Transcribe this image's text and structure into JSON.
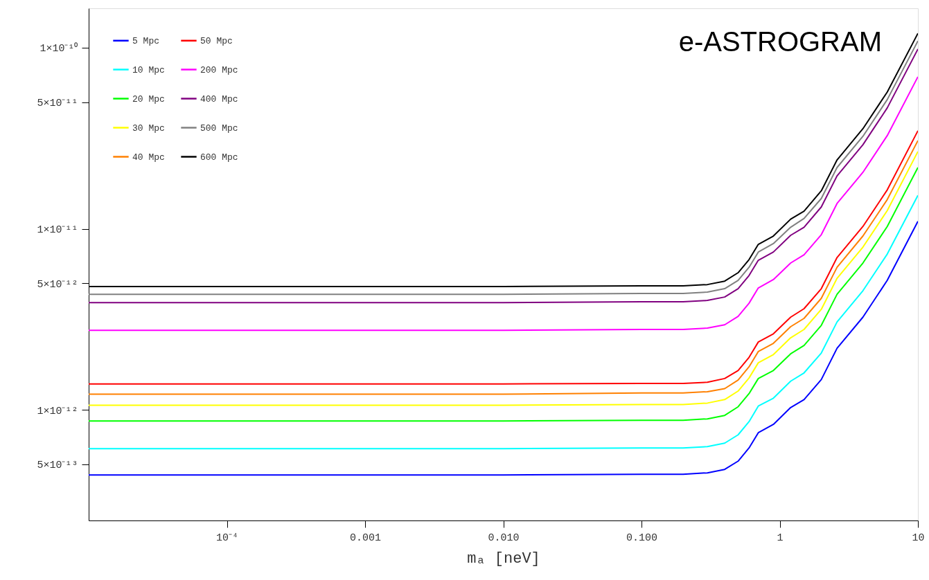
{
  "chart_data": {
    "type": "line",
    "xlabel": "mₐ [neV]",
    "log": "xy",
    "grid": false,
    "legend": "top left",
    "marker": "none",
    "line_style": "solid",
    "annotations": [
      "e-ASTROGRAM"
    ],
    "x": [
      1e-05,
      0.01,
      0.1,
      0.2,
      0.3,
      0.4,
      0.5,
      0.6,
      0.7,
      0.9,
      1.2,
      1.5,
      2,
      2.6,
      4,
      6,
      10
    ],
    "xlim": [
      1e-05,
      10
    ],
    "xticks": [
      {
        "value": 0.0001,
        "label": "10⁻⁴"
      },
      0.001,
      {
        "value": 0.01,
        "label": "0.010"
      },
      {
        "value": 0.1,
        "label": "0.100"
      },
      1,
      10
    ],
    "ylim": [
      2.45e-13,
      1.65e-10
    ],
    "yticks": [
      {
        "value": 5e-13,
        "label": "5×10⁻¹³"
      },
      {
        "value": 1e-12,
        "label": "1×10⁻¹²"
      },
      {
        "value": 5e-12,
        "label": "5×10⁻¹²"
      },
      {
        "value": 1e-11,
        "label": "1×10⁻¹¹"
      },
      {
        "value": 5e-11,
        "label": "5×10⁻¹¹"
      },
      {
        "value": 1e-10,
        "label": "1×10⁻¹⁰"
      }
    ],
    "series": [
      {
        "name": "5 Mpc",
        "color": "#0000ff",
        "values": [
          4.37e-13,
          4.37e-13,
          4.41e-13,
          4.41e-13,
          4.49e-13,
          4.69e-13,
          5.21e-13,
          6.16e-13,
          7.48e-13,
          8.31e-13,
          1.03e-12,
          1.14e-12,
          1.47e-12,
          2.19e-12,
          3.25e-12,
          5.19e-12,
          1.1e-11
        ]
      },
      {
        "name": "10 Mpc",
        "color": "#00ffff",
        "values": [
          6.11e-13,
          6.11e-13,
          6.16e-13,
          6.16e-13,
          6.27e-13,
          6.55e-13,
          7.28e-13,
          8.61e-13,
          1.05e-12,
          1.16e-12,
          1.44e-12,
          1.6e-12,
          2.06e-12,
          3.06e-12,
          4.55e-12,
          7.25e-12,
          1.53e-11
        ]
      },
      {
        "name": "20 Mpc",
        "color": "#00ff00",
        "values": [
          8.69e-13,
          8.69e-13,
          8.76e-13,
          8.76e-13,
          8.92e-13,
          9.32e-13,
          1.04e-12,
          1.23e-12,
          1.49e-12,
          1.65e-12,
          2.04e-12,
          2.27e-12,
          2.93e-12,
          4.35e-12,
          6.47e-12,
          1.03e-11,
          2.18e-11
        ]
      },
      {
        "name": "30 Mpc",
        "color": "#ffff00",
        "values": [
          1.06e-12,
          1.06e-12,
          1.07e-12,
          1.07e-12,
          1.09e-12,
          1.14e-12,
          1.27e-12,
          1.5e-12,
          1.82e-12,
          2.02e-12,
          2.5e-12,
          2.78e-12,
          3.59e-12,
          5.33e-12,
          7.92e-12,
          1.26e-11,
          2.67e-11
        ]
      },
      {
        "name": "40 Mpc",
        "color": "#ff8000",
        "values": [
          1.22e-12,
          1.22e-12,
          1.24e-12,
          1.24e-12,
          1.26e-12,
          1.31e-12,
          1.46e-12,
          1.73e-12,
          2.1e-12,
          2.33e-12,
          2.88e-12,
          3.2e-12,
          4.13e-12,
          6.13e-12,
          9.12e-12,
          1.45e-11,
          3.07e-11
        ]
      },
      {
        "name": "50 Mpc",
        "color": "#ff0000",
        "values": [
          1.39e-12,
          1.39e-12,
          1.4e-12,
          1.4e-12,
          1.42e-12,
          1.49e-12,
          1.65e-12,
          1.95e-12,
          2.37e-12,
          2.63e-12,
          3.25e-12,
          3.62e-12,
          4.67e-12,
          6.94e-12,
          1.03e-11,
          1.64e-11,
          3.48e-11
        ]
      },
      {
        "name": "200 Mpc",
        "color": "#ff00ff",
        "values": [
          2.75e-12,
          2.75e-12,
          2.78e-12,
          2.78e-12,
          2.83e-12,
          2.95e-12,
          3.28e-12,
          3.88e-12,
          4.71e-12,
          5.24e-12,
          6.47e-12,
          7.19e-12,
          9.28e-12,
          1.38e-11,
          2.05e-11,
          3.27e-11,
          6.91e-11
        ]
      },
      {
        "name": "400 Mpc",
        "color": "#800080",
        "values": [
          3.91e-12,
          3.91e-12,
          3.95e-12,
          3.95e-12,
          4.02e-12,
          4.2e-12,
          4.67e-12,
          5.52e-12,
          6.7e-12,
          7.44e-12,
          9.2e-12,
          1.02e-11,
          1.32e-11,
          1.96e-11,
          2.91e-11,
          4.65e-11,
          9.83e-11
        ]
      },
      {
        "name": "500 Mpc",
        "color": "#808080",
        "values": [
          4.35e-12,
          4.35e-12,
          4.39e-12,
          4.39e-12,
          4.47e-12,
          4.67e-12,
          5.19e-12,
          6.13e-12,
          7.44e-12,
          8.28e-12,
          1.02e-11,
          1.14e-11,
          1.47e-11,
          2.18e-11,
          3.24e-11,
          5.17e-11,
          1.09e-10
        ]
      },
      {
        "name": "600 Mpc",
        "color": "#000000",
        "values": [
          4.8e-12,
          4.8e-12,
          4.84e-12,
          4.84e-12,
          4.92e-12,
          5.14e-12,
          5.72e-12,
          6.76e-12,
          8.2e-12,
          9.12e-12,
          1.13e-11,
          1.25e-11,
          1.62e-11,
          2.4e-11,
          3.57e-11,
          5.69e-11,
          1.2e-10
        ]
      }
    ]
  }
}
